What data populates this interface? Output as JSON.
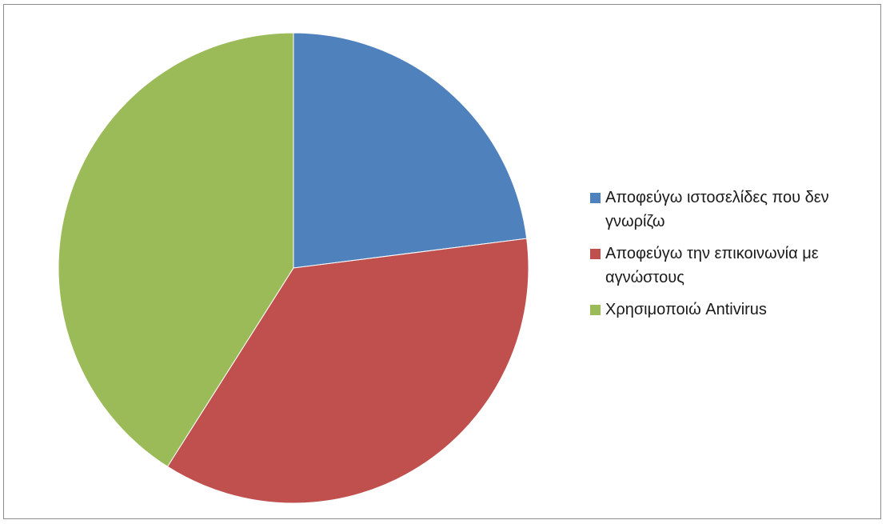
{
  "chart_data": {
    "type": "pie",
    "title": "",
    "start_angle_deg": 90,
    "direction": "clockwise",
    "legend_position": "right",
    "categories": [
      "Αποφεύγω ιστοσελίδες που δεν γνωρίζω",
      "Αποφεύγω την επικοινωνία με αγνώστους",
      "Χρησιμοποιώ Antivirus"
    ],
    "values": [
      23,
      36,
      41
    ],
    "colors": [
      "#4F81BD",
      "#C0504D",
      "#9BBB59"
    ]
  }
}
